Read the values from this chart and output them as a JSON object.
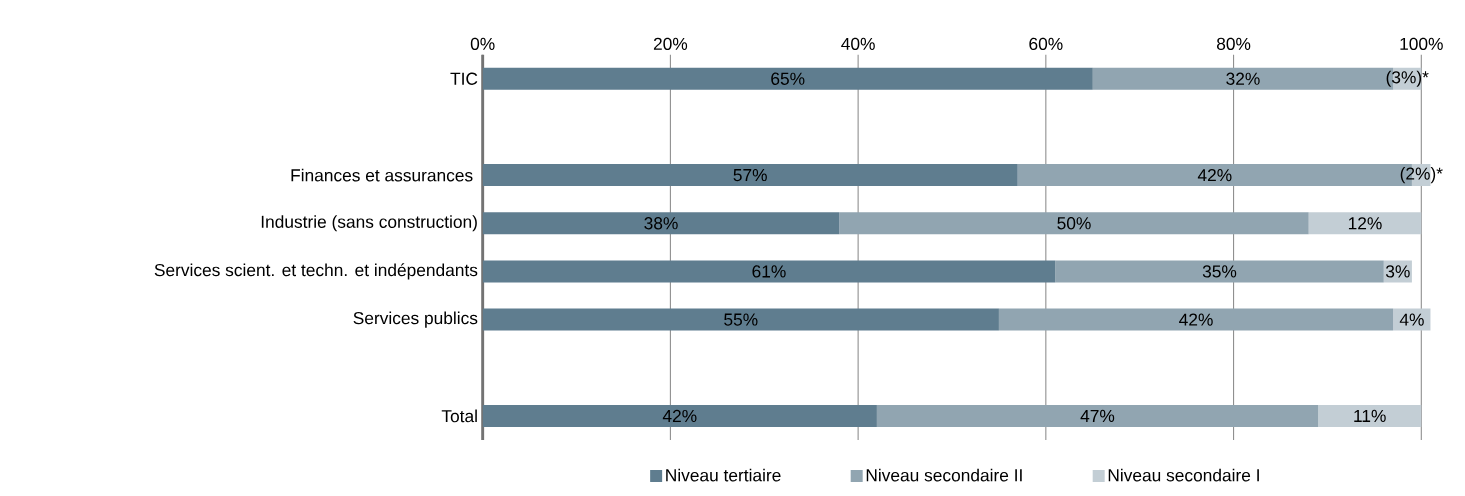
{
  "chart_data": {
    "type": "bar",
    "orientation": "horizontal",
    "stacked": true,
    "categories": [
      "TIC",
      null,
      "Finances et assurances ",
      "Industrie (sans construction)",
      "Services scient. et techn. et indépendants",
      "Services publics",
      null,
      "Total"
    ],
    "series": [
      {
        "name": "Niveau tertiaire",
        "color": "#5f7d8f",
        "values": [
          65,
          null,
          57,
          38,
          61,
          55,
          null,
          42
        ],
        "value_labels": [
          "65%",
          null,
          "57%",
          "38%",
          "61%",
          "55%",
          null,
          "42%"
        ]
      },
      {
        "name": "Niveau secondaire II",
        "color": "#91a5b1",
        "values": [
          32,
          null,
          42,
          50,
          35,
          42,
          null,
          47
        ],
        "value_labels": [
          "32%",
          null,
          "42%",
          "50%",
          "35%",
          "42%",
          null,
          "47%"
        ]
      },
      {
        "name": "Niveau secondaire I",
        "color": "#c3ced5",
        "values": [
          3,
          null,
          2,
          12,
          3,
          4,
          null,
          11
        ],
        "value_labels": [
          "(3%)*",
          null,
          "(2%)*",
          "12%",
          "3%",
          "4%",
          null,
          "11%"
        ]
      }
    ],
    "xlim": [
      0,
      101
    ],
    "xticks": [
      {
        "value": 0,
        "label": "0%"
      },
      {
        "value": 20,
        "label": "20%"
      },
      {
        "value": 40,
        "label": "40%"
      },
      {
        "value": 60,
        "label": "60%"
      },
      {
        "value": 80,
        "label": "80%"
      },
      {
        "value": 100,
        "label": "100%"
      }
    ],
    "grid": "x",
    "legend": "bottom"
  }
}
